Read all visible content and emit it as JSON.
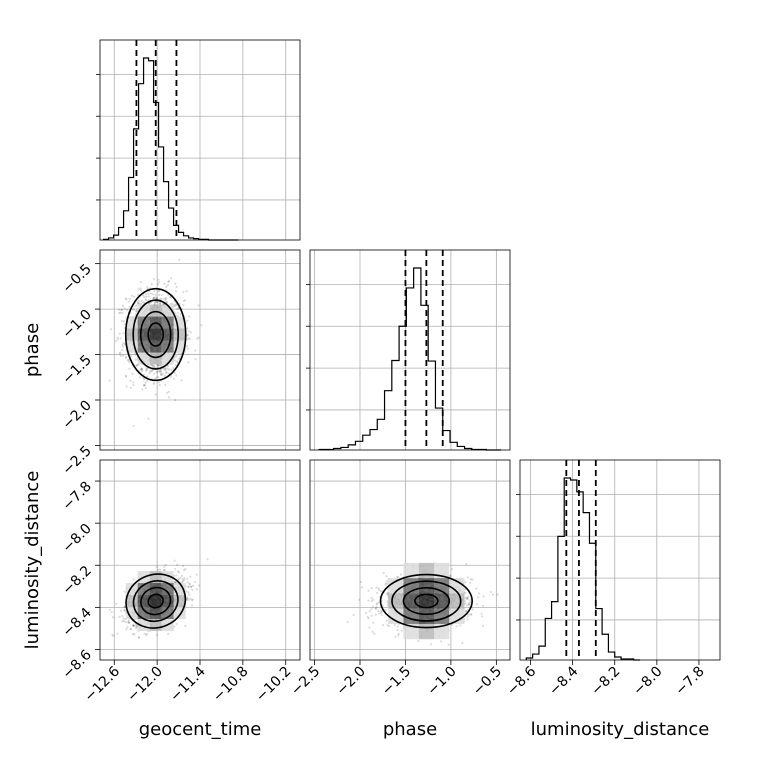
{
  "chart_data": {
    "type": "corner",
    "parameters": [
      "geocent_time",
      "phase",
      "luminosity_distance"
    ],
    "axis_labels": {
      "x": [
        "geocent_time",
        "phase",
        "luminosity_distance"
      ],
      "y": [
        "phase",
        "luminosity_distance"
      ]
    },
    "ranges": {
      "geocent_time": [
        -12.8,
        -10.0
      ],
      "phase": [
        -2.55,
        -0.35
      ],
      "luminosity_distance": [
        -8.65,
        -7.7
      ]
    },
    "ticks": {
      "geocent_time": [
        "−12.6",
        "−12.0",
        "−11.4",
        "−10.8",
        "−10.2"
      ],
      "phase": [
        "−2.5",
        "−2.0",
        "−1.5",
        "−1.0",
        "−0.5"
      ],
      "luminosity_distance": [
        "−8.6",
        "−8.4",
        "−8.2",
        "−8.0",
        "−7.8"
      ]
    },
    "tick_values": {
      "geocent_time": [
        -12.6,
        -12.0,
        -11.4,
        -10.8,
        -10.2
      ],
      "phase": [
        -2.5,
        -2.0,
        -1.5,
        -1.0,
        -0.5
      ],
      "luminosity_distance": [
        -8.6,
        -8.4,
        -8.2,
        -8.0,
        -7.8
      ]
    },
    "quantiles": {
      "geocent_time": [
        -12.29,
        -12.02,
        -11.73
      ],
      "phase": [
        -1.5,
        -1.27,
        -1.09
      ],
      "luminosity_distance": [
        -8.43,
        -8.37,
        -8.29
      ]
    },
    "hist1d": {
      "geocent_time": {
        "edges": [
          -12.75,
          -12.68,
          -12.61,
          -12.54,
          -12.47,
          -12.4,
          -12.33,
          -12.26,
          -12.19,
          -12.12,
          -12.05,
          -11.98,
          -11.91,
          -11.84,
          -11.77,
          -11.7,
          -11.63,
          -11.56,
          -11.49,
          -11.42,
          -11.35,
          -11.28,
          -11.21,
          -11.14,
          -11.07,
          -11.0,
          -10.93,
          -10.86
        ],
        "counts": [
          1,
          3,
          7,
          18,
          42,
          90,
          160,
          225,
          262,
          258,
          198,
          134,
          84,
          46,
          21,
          11,
          6,
          3,
          2,
          1,
          1,
          0,
          0,
          0,
          0,
          0,
          0
        ]
      },
      "phase": {
        "edges": [
          -2.45,
          -2.37,
          -2.29,
          -2.21,
          -2.13,
          -2.05,
          -1.97,
          -1.89,
          -1.81,
          -1.73,
          -1.65,
          -1.57,
          -1.49,
          -1.41,
          -1.33,
          -1.25,
          -1.17,
          -1.09,
          -1.01,
          -0.93,
          -0.85,
          -0.77,
          -0.69,
          -0.61,
          -0.53,
          -0.45
        ],
        "counts": [
          1,
          1,
          3,
          5,
          10,
          17,
          29,
          40,
          60,
          116,
          175,
          242,
          317,
          356,
          283,
          174,
          82,
          38,
          15,
          7,
          3,
          1,
          1,
          0,
          0
        ]
      },
      "luminosity_distance": {
        "edges": [
          -8.62,
          -8.59,
          -8.56,
          -8.53,
          -8.5,
          -8.47,
          -8.44,
          -8.41,
          -8.38,
          -8.35,
          -8.32,
          -8.29,
          -8.26,
          -8.23,
          -8.2,
          -8.17,
          -8.14,
          -8.11,
          -8.08
        ],
        "counts": [
          2,
          6,
          14,
          42,
          59,
          125,
          184,
          182,
          170,
          149,
          118,
          52,
          26,
          8,
          3,
          1,
          1,
          0
        ]
      }
    },
    "hist2d": [
      {
        "x": "geocent_time",
        "y": "phase",
        "mean": [
          -12.02,
          -1.28
        ],
        "sd": [
          0.2,
          0.24
        ],
        "rho": 0.0,
        "contours": [
          0.5,
          1.0,
          1.5,
          2.0
        ]
      },
      {
        "x": "geocent_time",
        "y": "luminosity_distance",
        "mean": [
          -12.02,
          -8.37
        ],
        "sd": [
          0.2,
          0.06
        ],
        "rho": 0.35,
        "contours": [
          0.5,
          1.0,
          1.5,
          2.0
        ]
      },
      {
        "x": "phase",
        "y": "luminosity_distance",
        "mean": [
          -1.27,
          -8.37
        ],
        "sd": [
          0.24,
          0.06
        ],
        "rho": 0.05,
        "contours": [
          0.5,
          1.0,
          1.5,
          2.0
        ]
      }
    ],
    "grid": true
  }
}
